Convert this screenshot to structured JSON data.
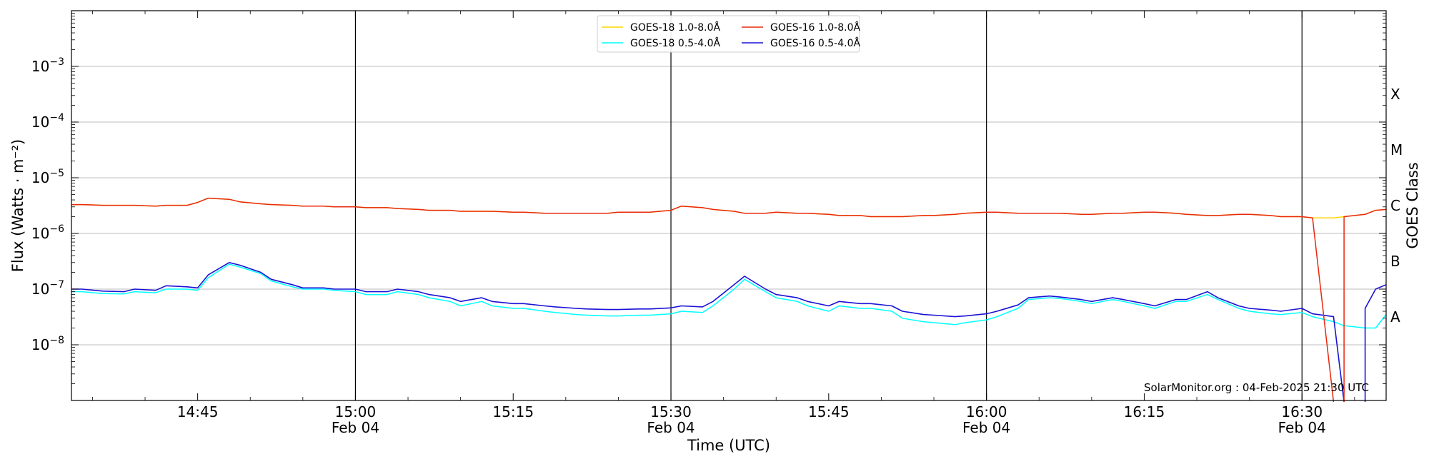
{
  "chart_data": {
    "type": "line",
    "title": "",
    "xlabel": "Time (UTC)",
    "ylabel": "Flux (Watts · m⁻²)",
    "y2label": "GOES Class",
    "yscale": "log",
    "ylim": [
      1e-09,
      0.01
    ],
    "xlim": [
      "14:33",
      "16:38"
    ],
    "grid": "horizontal",
    "legend": "top-center",
    "credit": "SolarMonitor.org : 04-Feb-2025 21:30 UTC",
    "x_ticks": [
      {
        "time": "14:45",
        "date": ""
      },
      {
        "time": "15:00",
        "date": "Feb 04"
      },
      {
        "time": "15:15",
        "date": ""
      },
      {
        "time": "15:30",
        "date": "Feb 04"
      },
      {
        "time": "15:45",
        "date": ""
      },
      {
        "time": "16:00",
        "date": "Feb 04"
      },
      {
        "time": "16:15",
        "date": ""
      },
      {
        "time": "16:30",
        "date": "Feb 04"
      }
    ],
    "day_lines": [
      "15:00",
      "15:30",
      "16:00",
      "16:30"
    ],
    "y_ticks": [
      {
        "label": "10",
        "exp": "−8",
        "value": 1e-08
      },
      {
        "label": "10",
        "exp": "−7",
        "value": 1e-07
      },
      {
        "label": "10",
        "exp": "−6",
        "value": 1e-06
      },
      {
        "label": "10",
        "exp": "−5",
        "value": 1e-05
      },
      {
        "label": "10",
        "exp": "−4",
        "value": 0.0001
      },
      {
        "label": "10",
        "exp": "−3",
        "value": 0.001
      }
    ],
    "goes_classes": [
      {
        "label": "A",
        "value": 3.16e-08
      },
      {
        "label": "B",
        "value": 3.16e-07
      },
      {
        "label": "C",
        "value": 3.16e-06
      },
      {
        "label": "M",
        "value": 3.16e-05
      },
      {
        "label": "X",
        "value": 0.000316
      }
    ],
    "x": [
      "14:33",
      "14:34",
      "14:36",
      "14:38",
      "14:39",
      "14:41",
      "14:42",
      "14:44",
      "14:45",
      "14:46",
      "14:48",
      "14:49",
      "14:51",
      "14:52",
      "14:54",
      "14:55",
      "14:57",
      "14:58",
      "15:00",
      "15:01",
      "15:03",
      "15:04",
      "15:06",
      "15:07",
      "15:09",
      "15:10",
      "15:12",
      "15:13",
      "15:15",
      "15:16",
      "15:18",
      "15:19",
      "15:21",
      "15:22",
      "15:24",
      "15:25",
      "15:27",
      "15:28",
      "15:30",
      "15:31",
      "15:33",
      "15:34",
      "15:36",
      "15:37",
      "15:39",
      "15:40",
      "15:42",
      "15:43",
      "15:45",
      "15:46",
      "15:48",
      "15:49",
      "15:51",
      "15:52",
      "15:54",
      "15:55",
      "15:57",
      "15:58",
      "16:00",
      "16:01",
      "16:03",
      "16:04",
      "16:06",
      "16:07",
      "16:09",
      "16:10",
      "16:12",
      "16:13",
      "16:15",
      "16:16",
      "16:18",
      "16:19",
      "16:21",
      "16:22",
      "16:24",
      "16:25",
      "16:27",
      "16:28",
      "16:30",
      "16:31",
      "16:33",
      "16:34",
      "16:36",
      "16:37",
      "16:38"
    ],
    "series": [
      {
        "name": "GOES-18 1.0-8.0Å",
        "color": "#ffd700",
        "values": [
          3.3e-06,
          3.3e-06,
          3.2e-06,
          3.2e-06,
          3.2e-06,
          3.1e-06,
          3.2e-06,
          3.2e-06,
          3.6e-06,
          4.3e-06,
          4.1e-06,
          3.7e-06,
          3.4e-06,
          3.3e-06,
          3.2e-06,
          3.1e-06,
          3.1e-06,
          3e-06,
          3e-06,
          2.9e-06,
          2.9e-06,
          2.8e-06,
          2.7e-06,
          2.6e-06,
          2.6e-06,
          2.5e-06,
          2.5e-06,
          2.5e-06,
          2.4e-06,
          2.4e-06,
          2.3e-06,
          2.3e-06,
          2.3e-06,
          2.3e-06,
          2.3e-06,
          2.4e-06,
          2.4e-06,
          2.4e-06,
          2.6e-06,
          3.1e-06,
          2.9e-06,
          2.7e-06,
          2.5e-06,
          2.3e-06,
          2.3e-06,
          2.4e-06,
          2.3e-06,
          2.3e-06,
          2.2e-06,
          2.1e-06,
          2.1e-06,
          2e-06,
          2e-06,
          2e-06,
          2.1e-06,
          2.1e-06,
          2.2e-06,
          2.3e-06,
          2.4e-06,
          2.4e-06,
          2.3e-06,
          2.3e-06,
          2.3e-06,
          2.3e-06,
          2.2e-06,
          2.2e-06,
          2.3e-06,
          2.3e-06,
          2.4e-06,
          2.4e-06,
          2.3e-06,
          2.2e-06,
          2.1e-06,
          2.1e-06,
          2.2e-06,
          2.2e-06,
          2.1e-06,
          2e-06,
          2e-06,
          1.9e-06,
          1.9e-06,
          2e-06,
          2.2e-06,
          2.6e-06,
          2.7e-06
        ]
      },
      {
        "name": "GOES-18 0.5-4.0Å",
        "color": "#00ffff",
        "values": [
          9e-08,
          9e-08,
          8.3e-08,
          8.2e-08,
          9e-08,
          8.6e-08,
          1e-07,
          1e-07,
          9.5e-08,
          1.6e-07,
          2.8e-07,
          2.5e-07,
          1.9e-07,
          1.4e-07,
          1.1e-07,
          1e-07,
          1e-07,
          9.5e-08,
          9e-08,
          8e-08,
          8e-08,
          9e-08,
          8e-08,
          7e-08,
          6e-08,
          5e-08,
          6e-08,
          5e-08,
          4.5e-08,
          4.5e-08,
          4e-08,
          3.8e-08,
          3.5e-08,
          3.4e-08,
          3.3e-08,
          3.3e-08,
          3.4e-08,
          3.4e-08,
          3.6e-08,
          4e-08,
          3.8e-08,
          5e-08,
          1e-07,
          1.5e-07,
          9e-08,
          7e-08,
          6e-08,
          5e-08,
          4e-08,
          5e-08,
          4.5e-08,
          4.5e-08,
          4e-08,
          3e-08,
          2.6e-08,
          2.5e-08,
          2.3e-08,
          2.5e-08,
          2.8e-08,
          3.2e-08,
          4.5e-08,
          6.5e-08,
          7e-08,
          6.8e-08,
          6e-08,
          5.5e-08,
          6.5e-08,
          6e-08,
          5e-08,
          4.5e-08,
          6e-08,
          6e-08,
          8e-08,
          6.5e-08,
          4.5e-08,
          4e-08,
          3.6e-08,
          3.5e-08,
          3.8e-08,
          3.2e-08,
          2.6e-08,
          2.2e-08,
          2e-08,
          2e-08,
          3.5e-08
        ]
      },
      {
        "name": "GOES-16 1.0-8.0Å",
        "color": "#e8280c",
        "values": [
          3.3e-06,
          3.3e-06,
          3.2e-06,
          3.2e-06,
          3.2e-06,
          3.1e-06,
          3.2e-06,
          3.2e-06,
          3.6e-06,
          4.3e-06,
          4.1e-06,
          3.7e-06,
          3.4e-06,
          3.3e-06,
          3.2e-06,
          3.1e-06,
          3.1e-06,
          3e-06,
          3e-06,
          2.9e-06,
          2.9e-06,
          2.8e-06,
          2.7e-06,
          2.6e-06,
          2.6e-06,
          2.5e-06,
          2.5e-06,
          2.5e-06,
          2.4e-06,
          2.4e-06,
          2.3e-06,
          2.3e-06,
          2.3e-06,
          2.3e-06,
          2.3e-06,
          2.4e-06,
          2.4e-06,
          2.4e-06,
          2.6e-06,
          3.1e-06,
          2.9e-06,
          2.7e-06,
          2.5e-06,
          2.3e-06,
          2.3e-06,
          2.4e-06,
          2.3e-06,
          2.3e-06,
          2.2e-06,
          2.1e-06,
          2.1e-06,
          2e-06,
          2e-06,
          2e-06,
          2.1e-06,
          2.1e-06,
          2.2e-06,
          2.3e-06,
          2.4e-06,
          2.4e-06,
          2.3e-06,
          2.3e-06,
          2.3e-06,
          2.3e-06,
          2.2e-06,
          2.2e-06,
          2.3e-06,
          2.3e-06,
          2.4e-06,
          2.4e-06,
          2.3e-06,
          2.2e-06,
          2.1e-06,
          2.1e-06,
          2.2e-06,
          2.2e-06,
          2.1e-06,
          2e-06,
          2e-06,
          1.9e-06,
          null,
          2e-06,
          2.2e-06,
          2.6e-06,
          2.7e-06
        ]
      },
      {
        "name": "GOES-16 0.5-4.0Å",
        "color": "#1a12d6",
        "values": [
          1e-07,
          1e-07,
          9.2e-08,
          9e-08,
          1e-07,
          9.5e-08,
          1.15e-07,
          1.1e-07,
          1.05e-07,
          1.8e-07,
          3e-07,
          2.7e-07,
          2e-07,
          1.5e-07,
          1.2e-07,
          1.05e-07,
          1.05e-07,
          1e-07,
          1e-07,
          9e-08,
          9e-08,
          1e-07,
          9e-08,
          8e-08,
          7e-08,
          6e-08,
          7e-08,
          6e-08,
          5.5e-08,
          5.5e-08,
          5e-08,
          4.8e-08,
          4.5e-08,
          4.4e-08,
          4.3e-08,
          4.3e-08,
          4.4e-08,
          4.4e-08,
          4.6e-08,
          5e-08,
          4.8e-08,
          6e-08,
          1.2e-07,
          1.7e-07,
          1e-07,
          8e-08,
          7e-08,
          6e-08,
          5e-08,
          6e-08,
          5.5e-08,
          5.5e-08,
          5e-08,
          4e-08,
          3.5e-08,
          3.4e-08,
          3.2e-08,
          3.3e-08,
          3.6e-08,
          4e-08,
          5.2e-08,
          7e-08,
          7.5e-08,
          7.2e-08,
          6.5e-08,
          6e-08,
          7e-08,
          6.5e-08,
          5.5e-08,
          5e-08,
          6.5e-08,
          6.5e-08,
          9e-08,
          7e-08,
          5e-08,
          4.5e-08,
          4.2e-08,
          4e-08,
          4.5e-08,
          3.6e-08,
          3.2e-08,
          null,
          4.5e-08,
          1e-07,
          1.2e-07
        ]
      }
    ]
  }
}
